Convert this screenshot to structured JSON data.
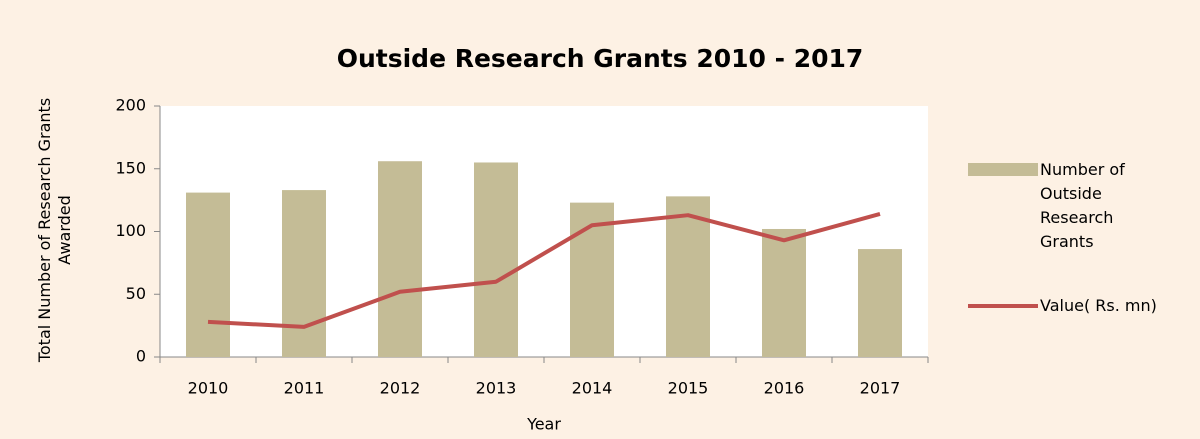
{
  "chart_data": {
    "type": "combo",
    "title": "Outside Research Grants 2010 - 2017",
    "x_label": "Year",
    "y_label": "Total Number of Research Grants Awarded",
    "categories": [
      "2010",
      "2011",
      "2012",
      "2013",
      "2014",
      "2015",
      "2016",
      "2017"
    ],
    "series": [
      {
        "name": "Number of Outside Research Grants",
        "type": "bar",
        "color": "#c4bc96",
        "values": [
          131,
          133,
          156,
          155,
          123,
          128,
          102,
          86
        ]
      },
      {
        "name": "Value( Rs. mn)",
        "type": "line",
        "color": "#c0504d",
        "values": [
          28,
          24,
          52,
          60,
          105,
          113,
          93,
          114
        ]
      }
    ],
    "ylim": [
      0,
      200
    ],
    "yticks": [
      0,
      50,
      100,
      150,
      200
    ],
    "legend": "right"
  }
}
